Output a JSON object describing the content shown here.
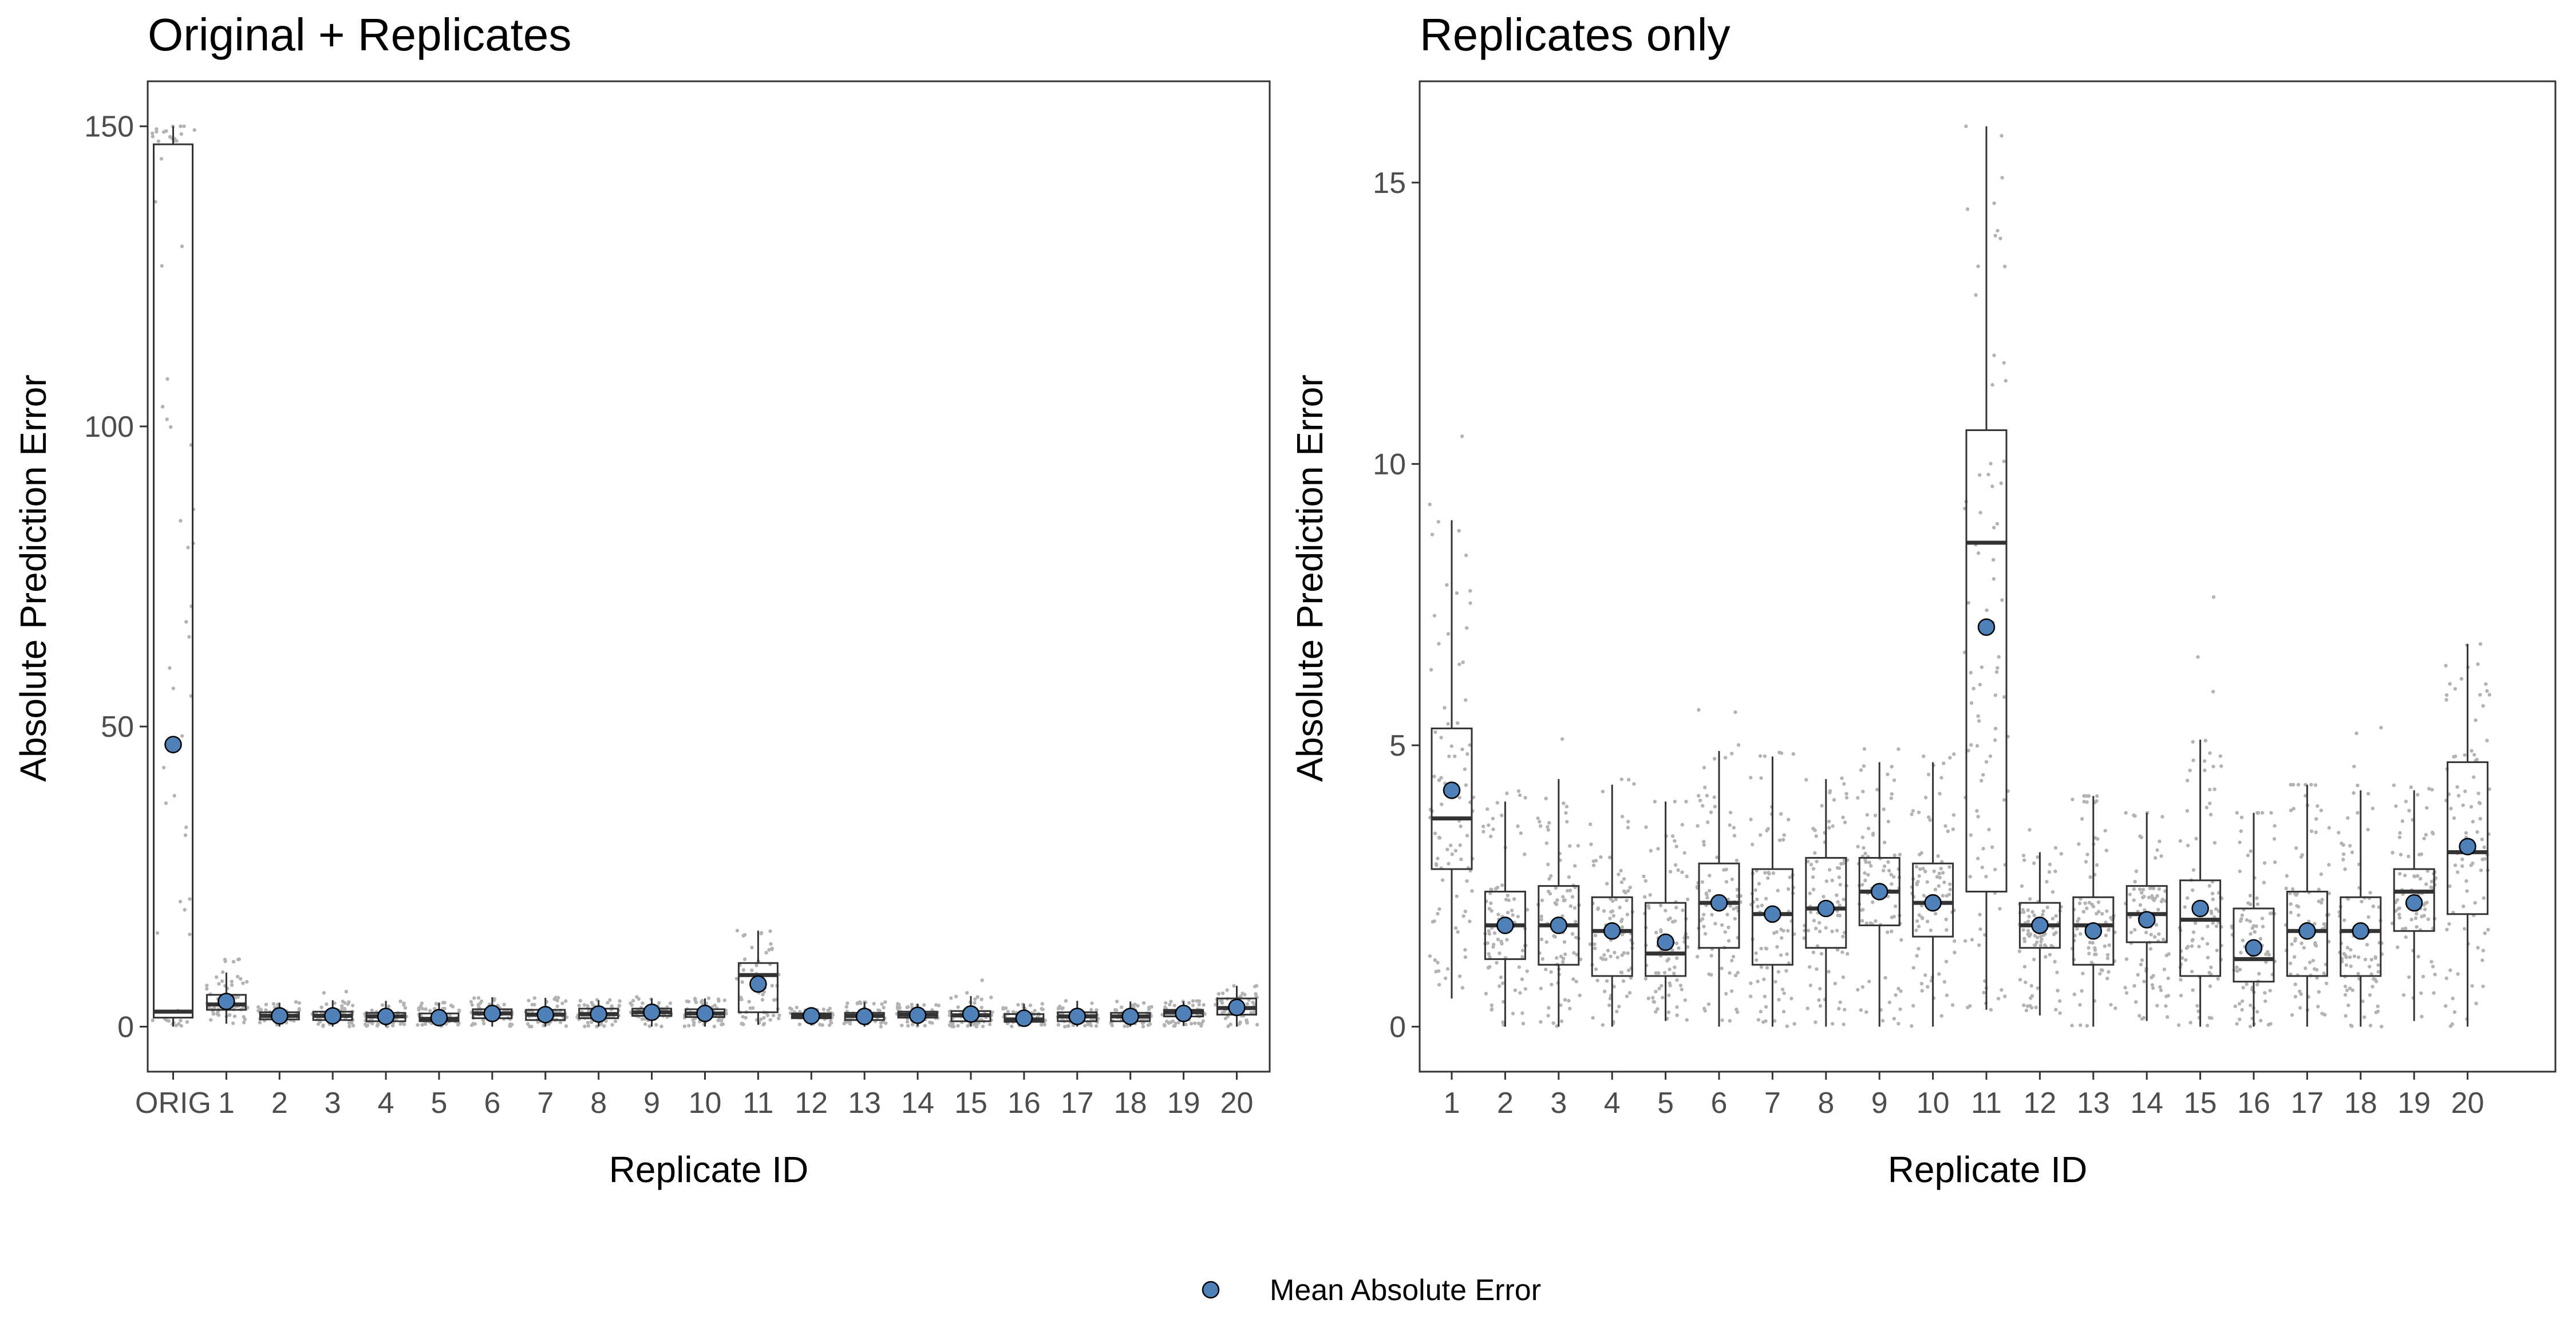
{
  "legend": {
    "label": "Mean Absolute Error"
  },
  "colors": {
    "mean_point": "#4e81b9",
    "jitter": "#b3b3b3",
    "box_line": "#333333",
    "panel_border": "#333333",
    "tick_text": "#4d4d4d"
  },
  "chart_data": [
    {
      "type": "box",
      "title": "Original + Replicates",
      "xlabel": "Replicate ID",
      "ylabel": "Absolute Prediction Error",
      "ylim": [
        -7.5,
        157.5
      ],
      "yticks": [
        0,
        50,
        100,
        150
      ],
      "categories": [
        "ORIG",
        "1",
        "2",
        "3",
        "4",
        "5",
        "6",
        "7",
        "8",
        "9",
        "10",
        "11",
        "12",
        "13",
        "14",
        "15",
        "16",
        "17",
        "18",
        "19",
        "20"
      ],
      "boxes": [
        {
          "q1": 1.5,
          "median": 2.5,
          "q3": 147.0,
          "whisker_low": 0.0,
          "whisker_high": 150.0,
          "mean": 47.0,
          "jitter_max": 150.0
        },
        {
          "q1": 2.8,
          "median": 3.7,
          "q3": 5.3,
          "whisker_low": 0.5,
          "whisker_high": 9.0,
          "mean": 4.2,
          "jitter_max": 11.8
        },
        {
          "q1": 1.2,
          "median": 1.8,
          "q3": 2.4,
          "whisker_low": 0.0,
          "whisker_high": 4.0,
          "mean": 1.8,
          "jitter_max": 4.2
        },
        {
          "q1": 1.1,
          "median": 1.8,
          "q3": 2.5,
          "whisker_low": 0.0,
          "whisker_high": 4.4,
          "mean": 1.8,
          "jitter_max": 6.0
        },
        {
          "q1": 0.9,
          "median": 1.7,
          "q3": 2.3,
          "whisker_low": 0.0,
          "whisker_high": 4.3,
          "mean": 1.7,
          "jitter_max": 4.4
        },
        {
          "q1": 0.9,
          "median": 1.3,
          "q3": 2.2,
          "whisker_low": 0.1,
          "whisker_high": 4.0,
          "mean": 1.5,
          "jitter_max": 4.0
        },
        {
          "q1": 1.4,
          "median": 2.2,
          "q3": 2.9,
          "whisker_low": 0.0,
          "whisker_high": 4.9,
          "mean": 2.2,
          "jitter_max": 5.8
        },
        {
          "q1": 1.1,
          "median": 2.0,
          "q3": 2.8,
          "whisker_low": 0.0,
          "whisker_high": 4.8,
          "mean": 2.0,
          "jitter_max": 4.9
        },
        {
          "q1": 1.4,
          "median": 2.1,
          "q3": 3.0,
          "whisker_low": 0.0,
          "whisker_high": 4.4,
          "mean": 2.1,
          "jitter_max": 4.5
        },
        {
          "q1": 1.8,
          "median": 2.4,
          "q3": 3.0,
          "whisker_low": 0.0,
          "whisker_high": 4.7,
          "mean": 2.4,
          "jitter_max": 5.1
        },
        {
          "q1": 1.6,
          "median": 2.2,
          "q3": 2.9,
          "whisker_low": 0.0,
          "whisker_high": 4.7,
          "mean": 2.2,
          "jitter_max": 4.9
        },
        {
          "q1": 2.4,
          "median": 8.6,
          "q3": 10.6,
          "whisker_low": 0.3,
          "whisker_high": 16.0,
          "mean": 7.1,
          "jitter_max": 16.0
        },
        {
          "q1": 1.4,
          "median": 1.8,
          "q3": 2.2,
          "whisker_low": 0.2,
          "whisker_high": 3.1,
          "mean": 1.8,
          "jitter_max": 3.9
        },
        {
          "q1": 1.1,
          "median": 1.8,
          "q3": 2.3,
          "whisker_low": 0.0,
          "whisker_high": 4.1,
          "mean": 1.7,
          "jitter_max": 4.1
        },
        {
          "q1": 1.5,
          "median": 2.0,
          "q3": 2.5,
          "whisker_low": 0.1,
          "whisker_high": 3.8,
          "mean": 1.9,
          "jitter_max": 3.8
        },
        {
          "q1": 0.9,
          "median": 1.9,
          "q3": 2.6,
          "whisker_low": 0.0,
          "whisker_high": 5.1,
          "mean": 2.1,
          "jitter_max": 8.2
        },
        {
          "q1": 0.8,
          "median": 1.2,
          "q3": 2.1,
          "whisker_low": 0.0,
          "whisker_high": 3.8,
          "mean": 1.4,
          "jitter_max": 3.8
        },
        {
          "q1": 0.9,
          "median": 1.7,
          "q3": 2.4,
          "whisker_low": 0.0,
          "whisker_high": 4.3,
          "mean": 1.7,
          "jitter_max": 4.3
        },
        {
          "q1": 0.9,
          "median": 1.7,
          "q3": 2.3,
          "whisker_low": 0.0,
          "whisker_high": 4.2,
          "mean": 1.7,
          "jitter_max": 5.6
        },
        {
          "q1": 1.7,
          "median": 2.4,
          "q3": 2.8,
          "whisker_low": 0.1,
          "whisker_high": 4.2,
          "mean": 2.2,
          "jitter_max": 4.3
        },
        {
          "q1": 2.0,
          "median": 3.1,
          "q3": 4.7,
          "whisker_low": 0.0,
          "whisker_high": 6.8,
          "mean": 3.2,
          "jitter_max": 6.8
        }
      ]
    },
    {
      "type": "box",
      "title": "Replicates only",
      "xlabel": "Replicate ID",
      "ylabel": "Absolute Prediction Error",
      "ylim": [
        -0.8,
        16.8
      ],
      "yticks": [
        0,
        5,
        10,
        15
      ],
      "categories": [
        "1",
        "2",
        "3",
        "4",
        "5",
        "6",
        "7",
        "8",
        "9",
        "10",
        "11",
        "12",
        "13",
        "14",
        "15",
        "16",
        "17",
        "18",
        "19",
        "20"
      ],
      "boxes": [
        {
          "q1": 2.8,
          "median": 3.7,
          "q3": 5.3,
          "whisker_low": 0.5,
          "whisker_high": 9.0,
          "mean": 4.2,
          "jitter_max": 11.8
        },
        {
          "q1": 1.2,
          "median": 1.8,
          "q3": 2.4,
          "whisker_low": 0.0,
          "whisker_high": 4.0,
          "mean": 1.8,
          "jitter_max": 4.2
        },
        {
          "q1": 1.1,
          "median": 1.8,
          "q3": 2.5,
          "whisker_low": 0.0,
          "whisker_high": 4.4,
          "mean": 1.8,
          "jitter_max": 6.0
        },
        {
          "q1": 0.9,
          "median": 1.7,
          "q3": 2.3,
          "whisker_low": 0.0,
          "whisker_high": 4.3,
          "mean": 1.7,
          "jitter_max": 4.4
        },
        {
          "q1": 0.9,
          "median": 1.3,
          "q3": 2.2,
          "whisker_low": 0.1,
          "whisker_high": 4.0,
          "mean": 1.5,
          "jitter_max": 4.0
        },
        {
          "q1": 1.4,
          "median": 2.2,
          "q3": 2.9,
          "whisker_low": 0.0,
          "whisker_high": 4.9,
          "mean": 2.2,
          "jitter_max": 5.8
        },
        {
          "q1": 1.1,
          "median": 2.0,
          "q3": 2.8,
          "whisker_low": 0.0,
          "whisker_high": 4.8,
          "mean": 2.0,
          "jitter_max": 4.9
        },
        {
          "q1": 1.4,
          "median": 2.1,
          "q3": 3.0,
          "whisker_low": 0.0,
          "whisker_high": 4.4,
          "mean": 2.1,
          "jitter_max": 4.5
        },
        {
          "q1": 1.8,
          "median": 2.4,
          "q3": 3.0,
          "whisker_low": 0.0,
          "whisker_high": 4.7,
          "mean": 2.4,
          "jitter_max": 5.1
        },
        {
          "q1": 1.6,
          "median": 2.2,
          "q3": 2.9,
          "whisker_low": 0.0,
          "whisker_high": 4.7,
          "mean": 2.2,
          "jitter_max": 4.9
        },
        {
          "q1": 2.4,
          "median": 8.6,
          "q3": 10.6,
          "whisker_low": 0.3,
          "whisker_high": 16.0,
          "mean": 7.1,
          "jitter_max": 16.0
        },
        {
          "q1": 1.4,
          "median": 1.8,
          "q3": 2.2,
          "whisker_low": 0.2,
          "whisker_high": 3.1,
          "mean": 1.8,
          "jitter_max": 3.9
        },
        {
          "q1": 1.1,
          "median": 1.8,
          "q3": 2.3,
          "whisker_low": 0.0,
          "whisker_high": 4.1,
          "mean": 1.7,
          "jitter_max": 4.1
        },
        {
          "q1": 1.5,
          "median": 2.0,
          "q3": 2.5,
          "whisker_low": 0.1,
          "whisker_high": 3.8,
          "mean": 1.9,
          "jitter_max": 3.8
        },
        {
          "q1": 0.9,
          "median": 1.9,
          "q3": 2.6,
          "whisker_low": 0.0,
          "whisker_high": 5.1,
          "mean": 2.1,
          "jitter_max": 8.2
        },
        {
          "q1": 0.8,
          "median": 1.2,
          "q3": 2.1,
          "whisker_low": 0.0,
          "whisker_high": 3.8,
          "mean": 1.4,
          "jitter_max": 3.8
        },
        {
          "q1": 0.9,
          "median": 1.7,
          "q3": 2.4,
          "whisker_low": 0.0,
          "whisker_high": 4.3,
          "mean": 1.7,
          "jitter_max": 4.3
        },
        {
          "q1": 0.9,
          "median": 1.7,
          "q3": 2.3,
          "whisker_low": 0.0,
          "whisker_high": 4.2,
          "mean": 1.7,
          "jitter_max": 5.6
        },
        {
          "q1": 1.7,
          "median": 2.4,
          "q3": 2.8,
          "whisker_low": 0.1,
          "whisker_high": 4.2,
          "mean": 2.2,
          "jitter_max": 4.3
        },
        {
          "q1": 2.0,
          "median": 3.1,
          "q3": 4.7,
          "whisker_low": 0.0,
          "whisker_high": 6.8,
          "mean": 3.2,
          "jitter_max": 6.8
        }
      ]
    }
  ]
}
